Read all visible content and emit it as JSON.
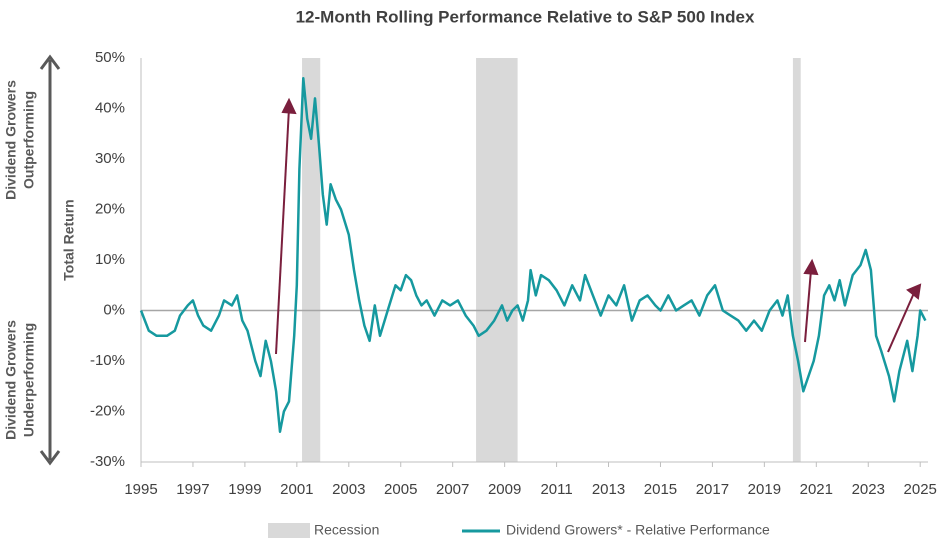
{
  "chart_data": {
    "type": "line",
    "title": "12-Month Rolling Performance Relative to S&P 500 Index",
    "ylabel": "Total Return",
    "upper_label": [
      "Dividend Growers",
      "Outperforming"
    ],
    "lower_label": [
      "Dividend Growers",
      "Underperforming"
    ],
    "xlim": [
      1995,
      2025.3
    ],
    "ylim": [
      -30,
      50
    ],
    "xticks": [
      1995,
      1997,
      1999,
      2001,
      2003,
      2005,
      2007,
      2009,
      2011,
      2013,
      2015,
      2017,
      2019,
      2021,
      2023,
      2025
    ],
    "yticks": [
      {
        "value": -30,
        "label": "-30%"
      },
      {
        "value": -20,
        "label": "-20%"
      },
      {
        "value": -10,
        "label": "-10%"
      },
      {
        "value": 0,
        "label": "0%"
      },
      {
        "value": 10,
        "label": "10%"
      },
      {
        "value": 20,
        "label": "20%"
      },
      {
        "value": 30,
        "label": "30%"
      },
      {
        "value": 40,
        "label": "40%"
      },
      {
        "value": 50,
        "label": "50%"
      }
    ],
    "recession_name": "Recession",
    "recession_color": "#d9d9d9",
    "recessions": [
      {
        "start": 2001.2,
        "end": 2001.9
      },
      {
        "start": 2007.9,
        "end": 2009.5
      },
      {
        "start": 2020.1,
        "end": 2020.4
      }
    ],
    "series": [
      {
        "name": "Dividend Growers* - Relative Performance",
        "color": "#16999f",
        "x": [
          1995.0,
          1995.3,
          1995.6,
          1996.0,
          1996.3,
          1996.5,
          1996.8,
          1997.0,
          1997.2,
          1997.4,
          1997.7,
          1998.0,
          1998.2,
          1998.5,
          1998.7,
          1998.9,
          1999.1,
          1999.4,
          1999.6,
          1999.8,
          2000.0,
          2000.2,
          2000.35,
          2000.5,
          2000.7,
          2000.9,
          2001.0,
          2001.1,
          2001.25,
          2001.4,
          2001.55,
          2001.7,
          2001.85,
          2002.0,
          2002.15,
          2002.3,
          2002.5,
          2002.7,
          2003.0,
          2003.2,
          2003.4,
          2003.6,
          2003.8,
          2004.0,
          2004.2,
          2004.5,
          2004.8,
          2005.0,
          2005.2,
          2005.4,
          2005.6,
          2005.8,
          2006.0,
          2006.3,
          2006.6,
          2006.9,
          2007.2,
          2007.5,
          2007.8,
          2008.0,
          2008.3,
          2008.6,
          2008.9,
          2009.1,
          2009.3,
          2009.5,
          2009.7,
          2009.9,
          2010.0,
          2010.2,
          2010.4,
          2010.7,
          2011.0,
          2011.3,
          2011.6,
          2011.9,
          2012.1,
          2012.4,
          2012.7,
          2013.0,
          2013.3,
          2013.6,
          2013.9,
          2014.2,
          2014.5,
          2014.8,
          2015.0,
          2015.3,
          2015.6,
          2015.9,
          2016.2,
          2016.5,
          2016.8,
          2017.1,
          2017.4,
          2017.7,
          2018.0,
          2018.3,
          2018.6,
          2018.9,
          2019.2,
          2019.5,
          2019.7,
          2019.9,
          2020.1,
          2020.3,
          2020.5,
          2020.7,
          2020.9,
          2021.1,
          2021.3,
          2021.5,
          2021.7,
          2021.9,
          2022.1,
          2022.4,
          2022.7,
          2022.9,
          2023.1,
          2023.3,
          2023.5,
          2023.8,
          2024.0,
          2024.2,
          2024.5,
          2024.7,
          2024.9,
          2025.0,
          2025.2
        ],
        "values": [
          0,
          -4,
          -5,
          -5,
          -4,
          -1,
          1,
          2,
          -1,
          -3,
          -4,
          -1,
          2,
          1,
          3,
          -2,
          -4,
          -10,
          -13,
          -6,
          -10,
          -16,
          -24,
          -20,
          -18,
          -5,
          5,
          28,
          46,
          38,
          34,
          42,
          33,
          23,
          17,
          25,
          22,
          20,
          15,
          8,
          2,
          -3,
          -6,
          1,
          -5,
          0,
          5,
          4,
          7,
          6,
          3,
          1,
          2,
          -1,
          2,
          1,
          2,
          -1,
          -3,
          -5,
          -4,
          -2,
          1,
          -2,
          0,
          1,
          -2,
          2,
          8,
          3,
          7,
          6,
          4,
          1,
          5,
          2,
          7,
          3,
          -1,
          3,
          1,
          5,
          -2,
          2,
          3,
          1,
          0,
          3,
          0,
          1,
          2,
          -1,
          3,
          5,
          0,
          -1,
          -2,
          -4,
          -2,
          -4,
          0,
          2,
          -1,
          3,
          -5,
          -10,
          -16,
          -13,
          -10,
          -5,
          3,
          5,
          2,
          6,
          1,
          7,
          9,
          12,
          8,
          -5,
          -8,
          -13,
          -18,
          -12,
          -6,
          -12,
          -5,
          0,
          -2
        ]
      }
    ]
  }
}
